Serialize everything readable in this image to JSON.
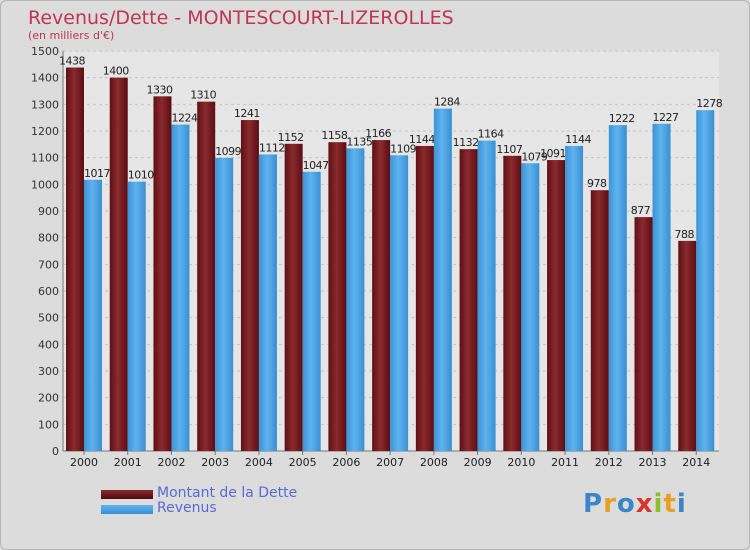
{
  "chart_data": {
    "type": "bar",
    "title": "Revenus/Dette - MONTESCOURT-LIZEROLLES",
    "subtitle": "(en milliers d'€)",
    "categories": [
      "2000",
      "2001",
      "2002",
      "2003",
      "2004",
      "2005",
      "2006",
      "2007",
      "2008",
      "2009",
      "2010",
      "2011",
      "2012",
      "2013",
      "2014"
    ],
    "series": [
      {
        "name": "Montant de la Dette",
        "color": "#7a1f23",
        "values": [
          1438,
          1400,
          1330,
          1310,
          1241,
          1152,
          1158,
          1166,
          1144,
          1132,
          1107,
          1091,
          978,
          877,
          788
        ],
        "labels": [
          "1438",
          "1400",
          "1330",
          "1310",
          "1241",
          "1152",
          "1158",
          "1166",
          "1144",
          "1132",
          "1107",
          "1091",
          "978",
          "877",
          "788"
        ]
      },
      {
        "name": "Revenus",
        "color": "#4aa3e3",
        "values": [
          1017,
          1010,
          1224,
          1099,
          1112,
          1047,
          1135,
          1109,
          1284,
          1164,
          1079,
          1144,
          1222,
          1227,
          1278
        ],
        "labels": [
          "1017",
          "1010",
          "1224",
          "1099",
          "1112",
          "1047",
          "1135",
          "1109",
          "1284",
          "1164",
          "1079",
          "1144",
          "1222",
          "1227",
          "1278"
        ]
      }
    ],
    "ylim": [
      0,
      1500
    ],
    "yticks": [
      0,
      100,
      200,
      300,
      400,
      500,
      600,
      700,
      800,
      900,
      1000,
      1100,
      1200,
      1300,
      1400,
      1500
    ],
    "grid": true,
    "legend_position": "bottom-left"
  },
  "branding": {
    "logo_letters": [
      "P",
      "r",
      "o",
      "x",
      "i",
      "t",
      "i"
    ],
    "logo_colors": [
      "#3a86c8",
      "#e8a020",
      "#3a86c8",
      "#d9342b",
      "#8bbf2c",
      "#e8a020",
      "#3a86c8"
    ]
  }
}
